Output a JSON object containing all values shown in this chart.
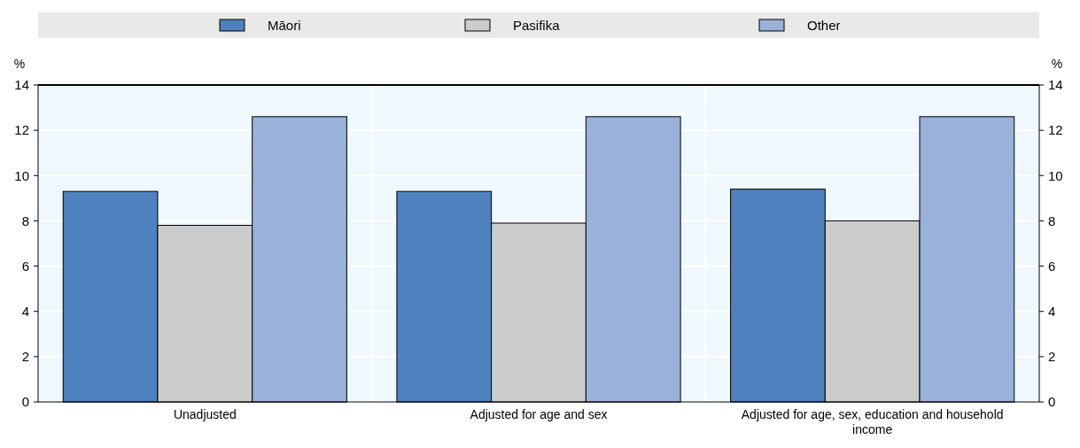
{
  "chart_data": {
    "type": "bar",
    "categories": [
      "Unadjusted",
      "Adjusted for age and sex",
      "Adjusted for age, sex, education and household income"
    ],
    "series": [
      {
        "name": "Māori",
        "color": "#4e81bd",
        "values": [
          9.3,
          9.3,
          9.4
        ]
      },
      {
        "name": "Pasifika",
        "color": "#cccccc",
        "values": [
          7.8,
          7.9,
          8.0
        ]
      },
      {
        "name": "Other",
        "color": "#9ab1da",
        "values": [
          12.6,
          12.6,
          12.6
        ]
      }
    ],
    "ylabel": "%",
    "y2label": "%",
    "ylim": [
      0,
      14
    ],
    "yticks": [
      0,
      2,
      4,
      6,
      8,
      10,
      12,
      14
    ],
    "y2lim": [
      0,
      14
    ],
    "y2ticks": [
      0,
      2,
      4,
      6,
      8,
      10,
      12,
      14
    ],
    "grid": true,
    "legend": "top"
  }
}
